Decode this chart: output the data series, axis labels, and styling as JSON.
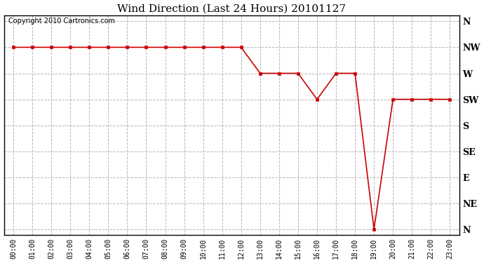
{
  "title": "Wind Direction (Last 24 Hours) 20101127",
  "copyright": "Copyright 2010 Cartronics.com",
  "background_color": "#ffffff",
  "plot_bg_color": "#ffffff",
  "line_color": "#cc0000",
  "marker": "s",
  "marker_size": 3,
  "grid_color": "#b0b0b0",
  "x_labels": [
    "00:00",
    "01:00",
    "02:00",
    "03:00",
    "04:00",
    "05:00",
    "06:00",
    "07:00",
    "08:00",
    "09:00",
    "10:00",
    "11:00",
    "12:00",
    "13:00",
    "14:00",
    "15:00",
    "16:00",
    "17:00",
    "18:00",
    "19:00",
    "20:00",
    "21:00",
    "22:00",
    "23:00"
  ],
  "y_ticks": [
    360,
    315,
    270,
    225,
    180,
    135,
    90,
    45,
    0
  ],
  "y_tick_labels": [
    "N",
    "NW",
    "W",
    "SW",
    "S",
    "SE",
    "E",
    "NE",
    "N"
  ],
  "xlim": [
    -0.5,
    23.5
  ],
  "ylim": [
    -10,
    370
  ],
  "y_values": [
    315,
    315,
    315,
    315,
    315,
    315,
    315,
    315,
    315,
    315,
    315,
    315,
    315,
    270,
    270,
    270,
    225,
    270,
    270,
    0,
    225,
    225,
    225,
    225
  ]
}
